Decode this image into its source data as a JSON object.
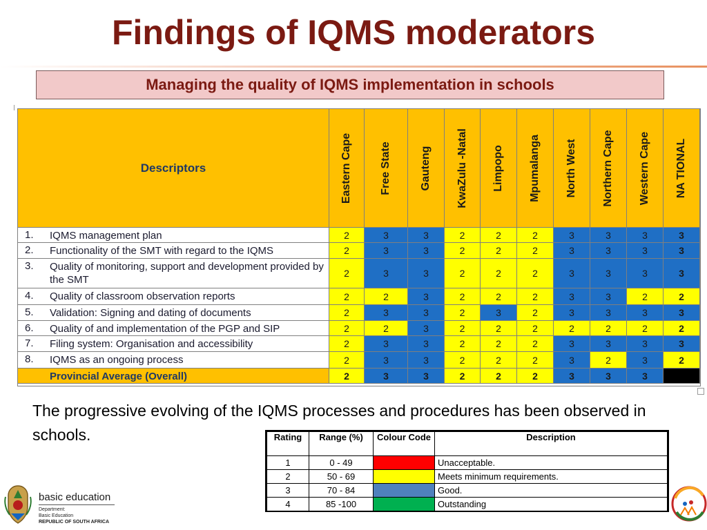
{
  "title": "Findings of IQMS moderators",
  "subtitle": "Managing the quality of IQMS implementation in schools",
  "table": {
    "descriptor_header": "Descriptors",
    "columns": [
      "Eastern Cape",
      "Free State",
      "Gauteng",
      "KwaZulu -Natal",
      "Limpopo",
      "Mpumalanga",
      "North West",
      "Northern Cape",
      "Western Cape",
      "NA TIONAL"
    ],
    "rows": [
      {
        "num": "1.",
        "label": "IQMS management plan",
        "values": [
          "2",
          "3",
          "3",
          "2",
          "2",
          "2",
          "3",
          "3",
          "3",
          "3"
        ]
      },
      {
        "num": "2.",
        "label": "Functionality of the SMT with regard to the IQMS",
        "values": [
          "2",
          "3",
          "3",
          "2",
          "2",
          "2",
          "3",
          "3",
          "3",
          "3"
        ]
      },
      {
        "num": "3.",
        "label": "Quality of monitoring, support and development provided by the SMT",
        "values": [
          "2",
          "3",
          "3",
          "2",
          "2",
          "2",
          "3",
          "3",
          "3",
          "3"
        ]
      },
      {
        "num": "4.",
        "label": "Quality of classroom observation reports",
        "values": [
          "2",
          "2",
          "3",
          "2",
          "2",
          "2",
          "3",
          "3",
          "2",
          "2"
        ]
      },
      {
        "num": "5.",
        "label": "Validation: Signing and dating of documents",
        "values": [
          "2",
          "3",
          "3",
          "2",
          "3",
          "2",
          "3",
          "3",
          "3",
          "3"
        ]
      },
      {
        "num": "6.",
        "label": "Quality of and implementation of the PGP and SIP",
        "values": [
          "2",
          "2",
          "3",
          "2",
          "2",
          "2",
          "2",
          "2",
          "2",
          "2"
        ]
      },
      {
        "num": "7.",
        "label": "Filing system: Organisation and accessibility",
        "values": [
          "2",
          "3",
          "3",
          "2",
          "2",
          "2",
          "3",
          "3",
          "3",
          "3"
        ]
      },
      {
        "num": "8.",
        "label": "IQMS as an ongoing process",
        "values": [
          "2",
          "3",
          "3",
          "2",
          "2",
          "2",
          "3",
          "2",
          "3",
          "2"
        ]
      }
    ],
    "average": {
      "label": "Provincial Average (Overall)",
      "values": [
        "2",
        "3",
        "3",
        "2",
        "2",
        "2",
        "3",
        "3",
        "3",
        ""
      ]
    }
  },
  "note": "The progressive evolving of the IQMS processes and procedures has been observed in schools.",
  "legend": {
    "headers": {
      "rating": "Rating",
      "range": "Range (%)",
      "colour": "Colour Code",
      "description": "Description"
    },
    "rows": [
      {
        "rating": "1",
        "range": "0 - 49",
        "color": "#ff0000",
        "description": "Unacceptable."
      },
      {
        "rating": "2",
        "range": "50 - 69",
        "color": "#ffff00",
        "description": "Meets minimum requirements."
      },
      {
        "rating": "3",
        "range": "70 - 84",
        "color": "#4f81bd",
        "description": "Good."
      },
      {
        "rating": "4",
        "range": "85 -100",
        "color": "#00b050",
        "description": "Outstanding"
      }
    ]
  },
  "logo": {
    "name": "basic education",
    "dept_line1": "Department:",
    "dept_line2": "Basic Education",
    "dept_line3": "REPUBLIC OF SOUTH AFRICA"
  },
  "colors": {
    "yellow": "#ffff00",
    "blue": "#1f6fc5",
    "gold": "#ffc000",
    "title": "#7b1a12"
  }
}
